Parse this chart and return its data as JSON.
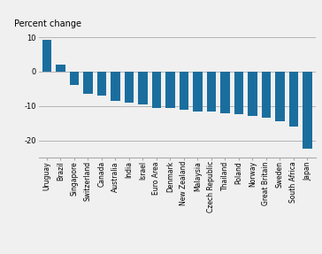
{
  "categories": [
    "Uruguay",
    "Brazil",
    "Singapore",
    "Switzerland",
    "Canada",
    "Australia",
    "India",
    "Israel",
    "Euro Area",
    "Denmark",
    "New Zealand",
    "Malaysia",
    "Czech Republic",
    "Thailand",
    "Poland",
    "Norway",
    "Great Britain",
    "Sweden",
    "South Africa",
    "Japan"
  ],
  "values": [
    9.2,
    2.0,
    -4.0,
    -6.5,
    -7.0,
    -8.5,
    -9.0,
    -9.5,
    -10.5,
    -10.5,
    -11.0,
    -11.5,
    -11.5,
    -12.0,
    -12.5,
    -13.0,
    -13.5,
    -14.5,
    -16.0,
    -22.5
  ],
  "bar_color": "#1a6e9e",
  "ylabel": "Percent change",
  "ylim": [
    -25,
    12
  ],
  "yticks": [
    -20,
    -10,
    0,
    10
  ],
  "background_color": "#f0f0f0",
  "axis_color": "#aaaaaa",
  "label_font_size": 5.5,
  "ylabel_font_size": 7
}
